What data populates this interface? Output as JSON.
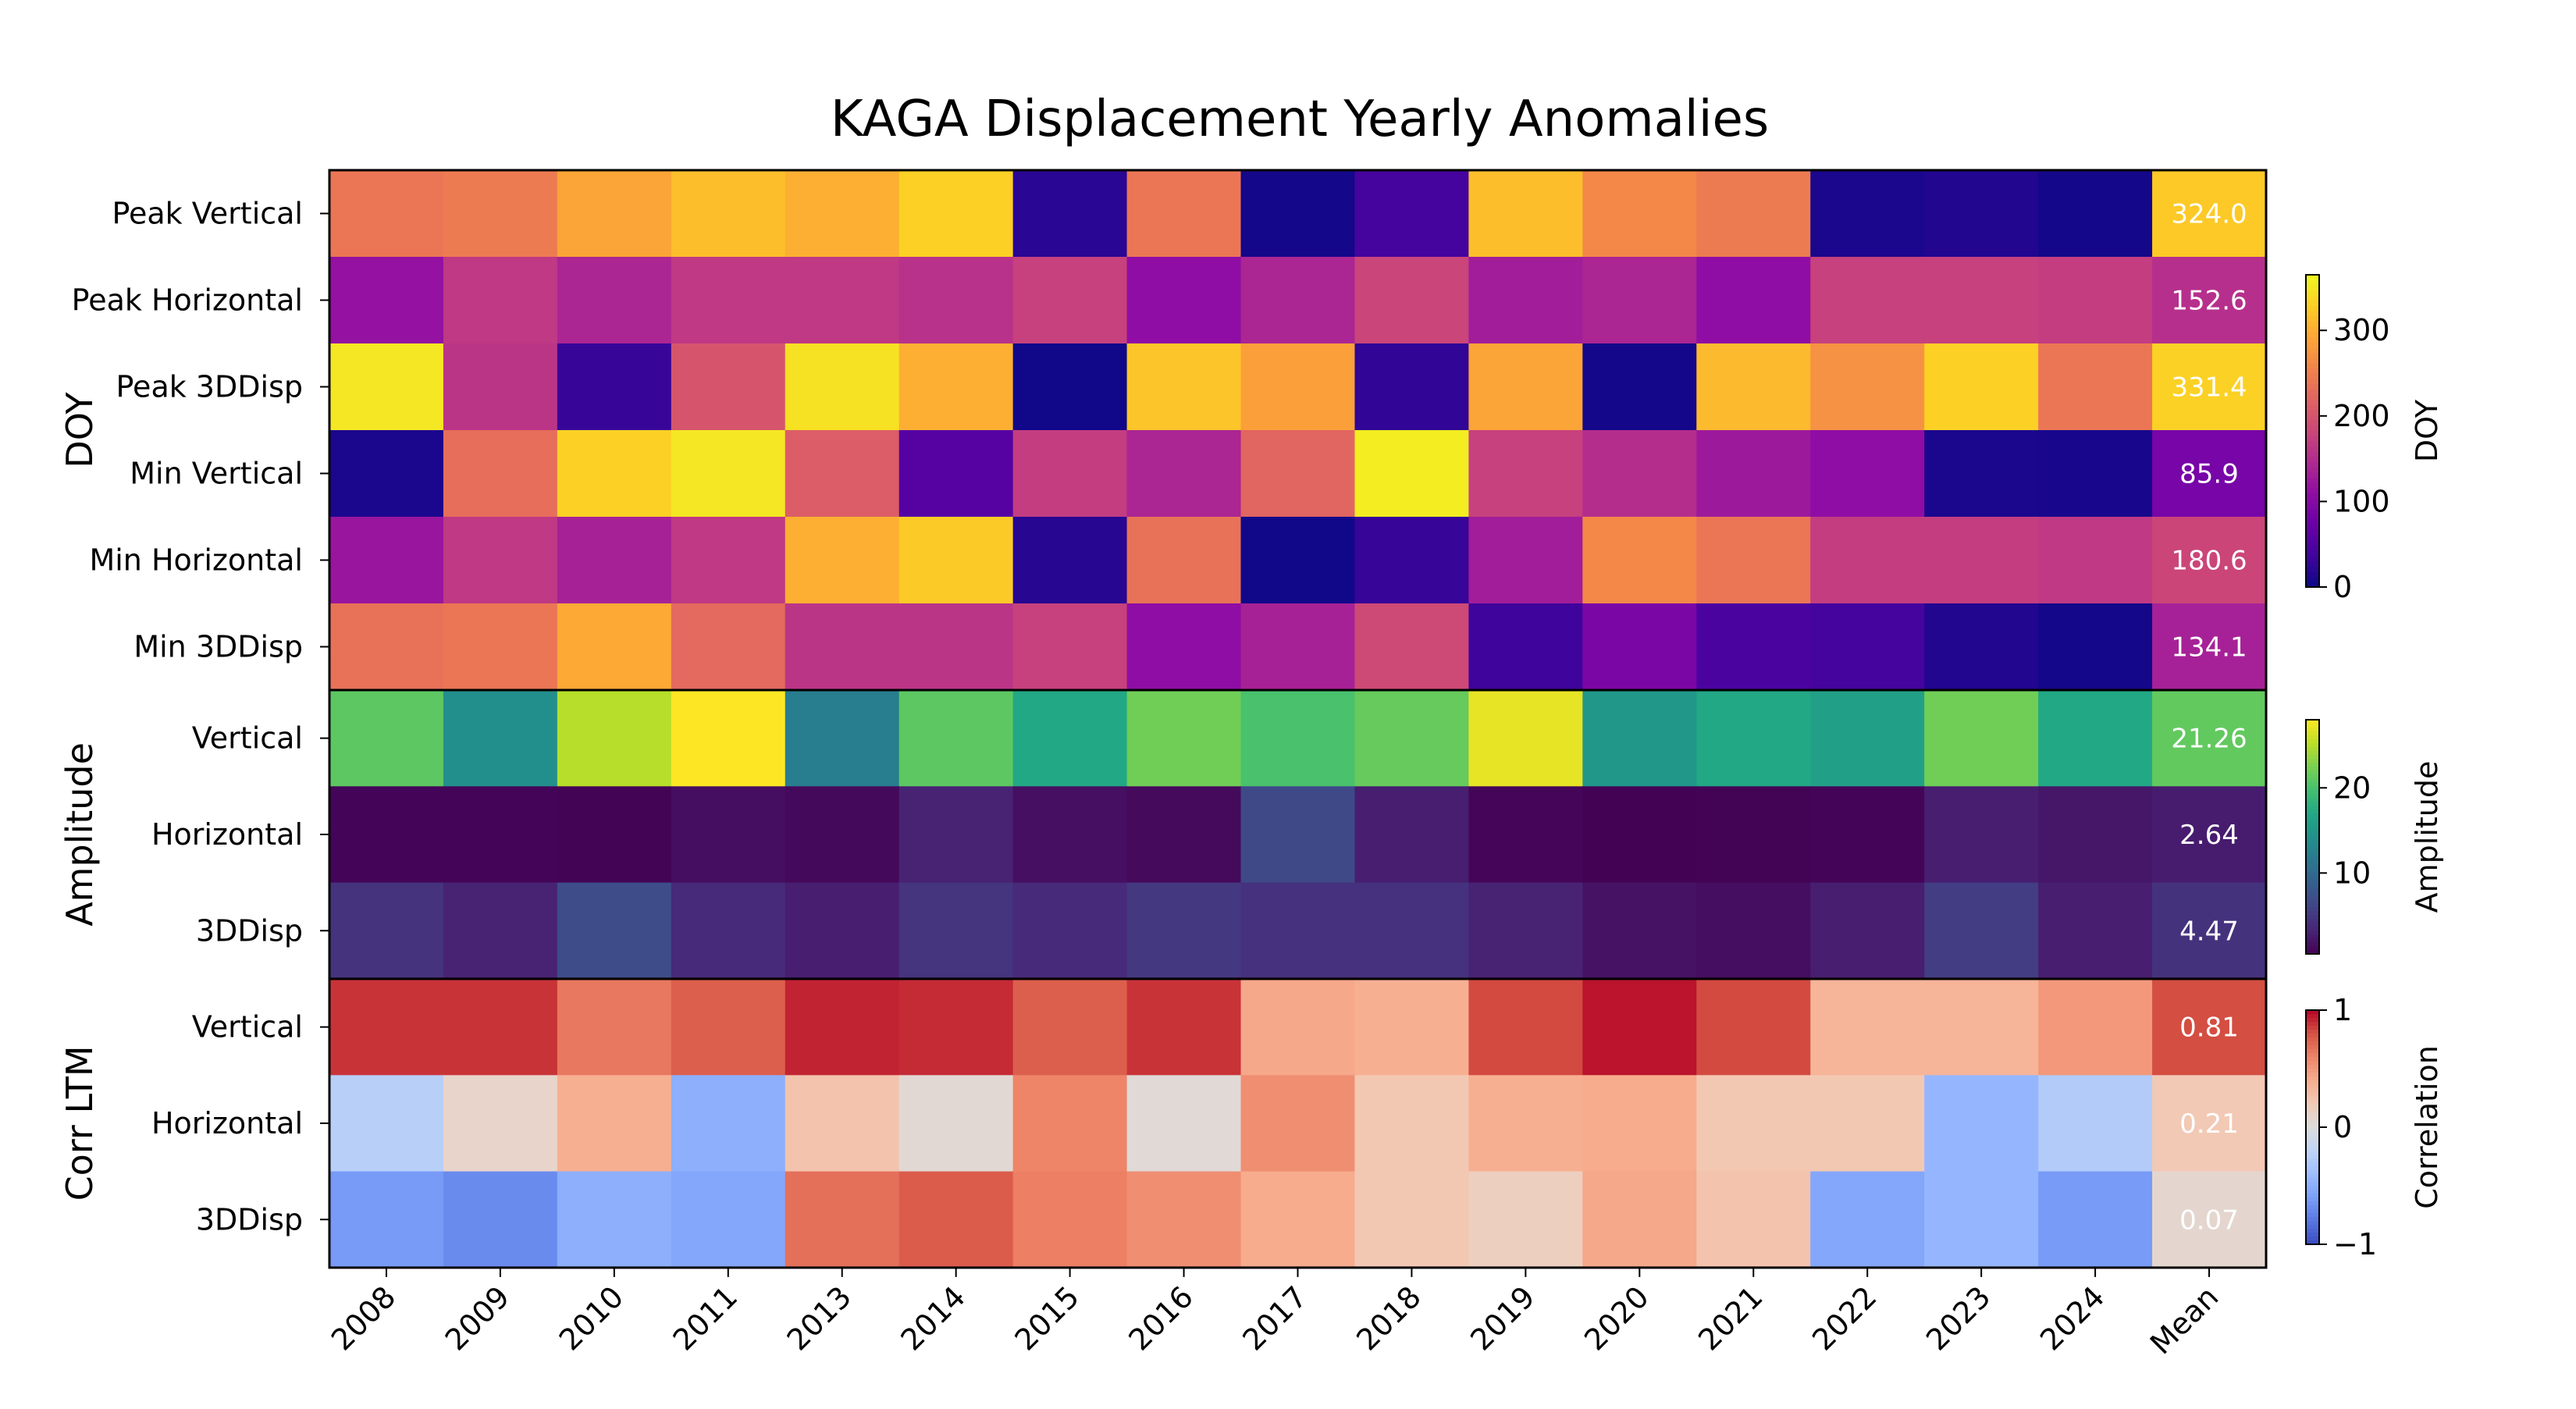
{
  "chart_data": {
    "type": "heatmap",
    "title": "KAGA Displacement Yearly Anomalies",
    "columns": [
      "2008",
      "2009",
      "2010",
      "2011",
      "2013",
      "2014",
      "2015",
      "2016",
      "2017",
      "2018",
      "2019",
      "2020",
      "2021",
      "2022",
      "2023",
      "2024",
      "Mean"
    ],
    "panels": [
      {
        "id": "doy",
        "group_label": "DOY",
        "colormap": "plasma",
        "vmin": 0,
        "vmax": 365,
        "value_format": "1",
        "colorbar": {
          "label": "DOY",
          "ticks": [
            0,
            100,
            200,
            300
          ]
        },
        "rows": [
          {
            "label": "Peak Vertical",
            "values": [
              240,
              245,
              290,
              315,
              300,
              330,
              20,
              240,
              5,
              40,
              315,
              260,
              245,
              10,
              15,
              5
            ],
            "mean": "324.0"
          },
          {
            "label": "Peak Horizontal",
            "values": [
              115,
              165,
              140,
              165,
              165,
              155,
              175,
              110,
              140,
              180,
              130,
              140,
              110,
              175,
              175,
              170
            ],
            "mean": "152.6"
          },
          {
            "label": "Peak 3DDisp",
            "values": [
              350,
              160,
              30,
              200,
              345,
              300,
              3,
              320,
              285,
              25,
              290,
              5,
              310,
              270,
              330,
              240
            ],
            "mean": "331.4"
          },
          {
            "label": "Min Vertical",
            "values": [
              10,
              230,
              330,
              350,
              210,
              55,
              170,
              140,
              220,
              355,
              175,
              150,
              125,
              110,
              10,
              8
            ],
            "mean": "85.9"
          },
          {
            "label": "Min Horizontal",
            "values": [
              120,
              165,
              135,
              165,
              300,
              325,
              18,
              235,
              3,
              30,
              130,
              260,
              240,
              170,
              170,
              165
            ],
            "mean": "180.6"
          },
          {
            "label": "Min 3DDisp",
            "values": [
              235,
              240,
              295,
              225,
              160,
              160,
              175,
              110,
              135,
              185,
              35,
              90,
              45,
              40,
              15,
              5
            ],
            "mean": "134.1"
          }
        ]
      },
      {
        "id": "amp",
        "group_label": "Amplitude",
        "colormap": "viridis",
        "vmin": 0.5,
        "vmax": 28,
        "value_format": "2",
        "colorbar": {
          "label": "Amplitude",
          "ticks": [
            10,
            20
          ]
        },
        "rows": [
          {
            "label": "Vertical",
            "values": [
              21,
              14,
              25,
              28,
              12,
              21,
              17,
              22,
              20,
              21.5,
              27,
              15,
              17,
              16,
              22,
              17
            ],
            "mean": "21.26"
          },
          {
            "label": "Horizontal",
            "values": [
              0.8,
              0.8,
              0.7,
              1.5,
              1.1,
              3.2,
              1.6,
              1.2,
              6.5,
              2.8,
              0.9,
              0.6,
              0.7,
              0.8,
              2.8,
              2.2
            ],
            "mean": "2.64"
          },
          {
            "label": "3DDisp",
            "values": [
              4.5,
              3.2,
              6.8,
              3.8,
              2.8,
              4.6,
              3.8,
              5.0,
              4.4,
              4.4,
              3.2,
              1.8,
              1.5,
              2.8,
              5.4,
              2.8
            ],
            "mean": "4.47"
          }
        ]
      },
      {
        "id": "corr",
        "group_label": "Corr LTM",
        "colormap": "coolwarm",
        "vmin": -1,
        "vmax": 1,
        "value_format": "2",
        "colorbar": {
          "label": "Correlation",
          "ticks": [
            -1,
            0,
            1
          ]
        },
        "rows": [
          {
            "label": "Vertical",
            "values": [
              0.88,
              0.88,
              0.65,
              0.75,
              0.92,
              0.9,
              0.75,
              0.88,
              0.42,
              0.38,
              0.82,
              0.96,
              0.82,
              0.35,
              0.35,
              0.5
            ],
            "mean": "0.81"
          },
          {
            "label": "Horizontal",
            "values": [
              -0.25,
              0.1,
              0.38,
              -0.5,
              0.25,
              0.05,
              0.6,
              0.03,
              0.55,
              0.22,
              0.38,
              0.4,
              0.22,
              0.22,
              -0.45,
              -0.28
            ],
            "mean": "0.21"
          },
          {
            "label": "3DDisp",
            "values": [
              -0.62,
              -0.7,
              -0.5,
              -0.55,
              0.68,
              0.76,
              0.62,
              0.55,
              0.4,
              0.22,
              0.15,
              0.42,
              0.25,
              -0.55,
              -0.45,
              -0.62
            ],
            "mean": "0.07"
          }
        ]
      }
    ]
  }
}
